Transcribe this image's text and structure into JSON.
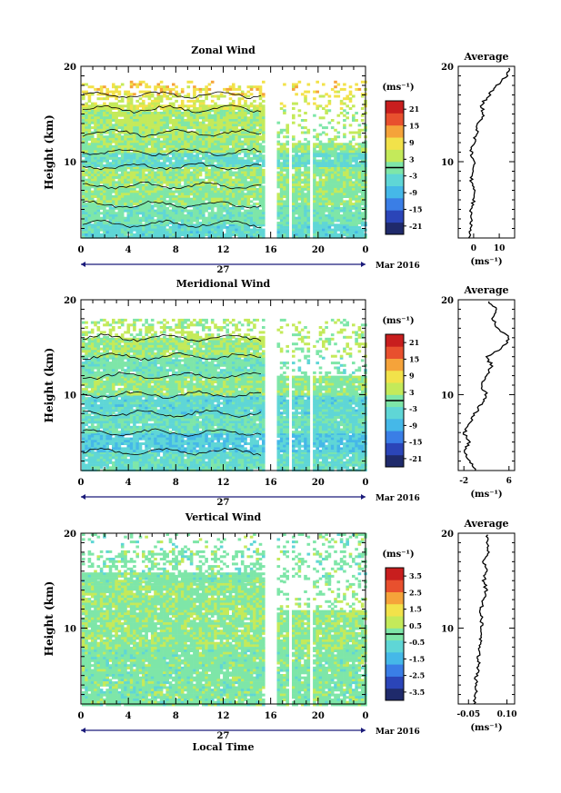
{
  "chart_data": [
    {
      "type": "heatmap",
      "title": "Zonal Wind",
      "ylabel": "Height (km)",
      "ylim": [
        2,
        20
      ],
      "yticks": [
        "10",
        "20"
      ],
      "xticks": [
        "0",
        "4",
        "8",
        "12",
        "16",
        "20",
        "0"
      ],
      "day_label": "27",
      "month_label": "Mar 2016",
      "colorbar_unit": "(ms⁻¹)",
      "colorbar_ticks": [
        "21",
        "15",
        "9",
        "3",
        "-3",
        "-9",
        "-15",
        "-21"
      ],
      "colorbar_range": [
        -24,
        24
      ],
      "bands": [
        {
          "y_range": [
            2.0,
            3.5
          ],
          "value": -4
        },
        {
          "y_range": [
            3.5,
            5.5
          ],
          "value": -1
        },
        {
          "y_range": [
            5.5,
            7.5
          ],
          "value": 1
        },
        {
          "y_range": [
            7.5,
            9.5
          ],
          "value": 2
        },
        {
          "y_range": [
            9.5,
            11.0
          ],
          "value": -3
        },
        {
          "y_range": [
            11.0,
            13.0
          ],
          "value": 2
        },
        {
          "y_range": [
            13.0,
            15.5
          ],
          "value": 3
        },
        {
          "y_range": [
            15.5,
            17.0
          ],
          "value": 6
        },
        {
          "y_range": [
            17.0,
            18.5
          ],
          "value": 9
        }
      ],
      "data_gaps": [
        [
          15.5,
          16.3
        ],
        [
          17.3,
          17.7
        ],
        [
          19.1,
          19.5
        ]
      ],
      "average_profile": {
        "title": "Average",
        "xlabel": "(ms⁻¹)",
        "xticks": [
          "0",
          "10"
        ],
        "xlim": [
          -6,
          16
        ],
        "yticks": [
          "10",
          "20"
        ],
        "height": [
          2,
          3,
          4,
          5,
          6,
          7,
          8,
          9,
          10,
          11,
          12,
          13,
          14,
          15,
          16,
          17,
          18,
          19,
          20
        ],
        "value": [
          -2,
          -1,
          -1,
          -1,
          0,
          0,
          -1,
          0,
          0,
          -1,
          0,
          1,
          2,
          4,
          3,
          6,
          9,
          13,
          14
        ]
      }
    },
    {
      "type": "heatmap",
      "title": "Meridional Wind",
      "ylabel": "Height (km)",
      "ylim": [
        2,
        20
      ],
      "yticks": [
        "10",
        "20"
      ],
      "xticks": [
        "0",
        "4",
        "8",
        "12",
        "16",
        "20",
        "0"
      ],
      "day_label": "27",
      "month_label": "Mar 2016",
      "colorbar_unit": "(ms⁻¹)",
      "colorbar_ticks": [
        "21",
        "15",
        "9",
        "3",
        "-3",
        "-9",
        "-15",
        "-21"
      ],
      "colorbar_range": [
        -24,
        24
      ],
      "bands": [
        {
          "y_range": [
            2.0,
            4.0
          ],
          "value": -3
        },
        {
          "y_range": [
            4.0,
            6.0
          ],
          "value": -6
        },
        {
          "y_range": [
            6.0,
            8.0
          ],
          "value": -2
        },
        {
          "y_range": [
            8.0,
            10.0
          ],
          "value": -4
        },
        {
          "y_range": [
            10.0,
            12.0
          ],
          "value": 1
        },
        {
          "y_range": [
            12.0,
            14.0
          ],
          "value": -1
        },
        {
          "y_range": [
            14.0,
            16.0
          ],
          "value": 2
        },
        {
          "y_range": [
            16.0,
            18.0
          ],
          "value": 3
        }
      ],
      "data_gaps": [
        [
          15.5,
          16.3
        ],
        [
          17.3,
          17.7
        ],
        [
          19.1,
          19.5
        ]
      ],
      "average_profile": {
        "title": "Average",
        "xlabel": "(ms⁻¹)",
        "xticks": [
          "-2",
          "6"
        ],
        "xlim": [
          -3,
          7
        ],
        "yticks": [
          "10",
          "20"
        ],
        "height": [
          2,
          3,
          4,
          5,
          6,
          7,
          8,
          9,
          10,
          11,
          12,
          13,
          14,
          15,
          16,
          17,
          18,
          19,
          20
        ],
        "value": [
          0,
          -1,
          -2,
          -1,
          -2,
          -1,
          0,
          1,
          2,
          1,
          2,
          3,
          2,
          5,
          6,
          4,
          3,
          4,
          2
        ]
      }
    },
    {
      "type": "heatmap",
      "title": "Vertical Wind",
      "ylabel": "Height (km)",
      "xlabel": "Local Time",
      "ylim": [
        2,
        20
      ],
      "yticks": [
        "10",
        "20"
      ],
      "xticks": [
        "0",
        "4",
        "8",
        "12",
        "16",
        "20",
        "0"
      ],
      "day_label": "27",
      "month_label": "Mar 2016",
      "colorbar_unit": "(ms⁻¹)",
      "colorbar_ticks": [
        "3.5",
        "2.5",
        "1.5",
        "0.5",
        "-0.5",
        "-1.5",
        "-2.5",
        "-3.5"
      ],
      "colorbar_range": [
        -4,
        4
      ],
      "bands": [
        {
          "y_range": [
            2.0,
            8.0
          ],
          "value": 0.0
        },
        {
          "y_range": [
            8.0,
            15.0
          ],
          "value": 0.2
        },
        {
          "y_range": [
            15.0,
            20.0
          ],
          "value": 0.0
        }
      ],
      "data_gaps": [
        [
          15.5,
          16.3
        ],
        [
          17.3,
          17.7
        ],
        [
          19.1,
          19.5
        ]
      ],
      "average_profile": {
        "title": "Average",
        "xlabel": "(ms⁻¹)",
        "xticks": [
          "-0.05",
          "0.10"
        ],
        "xlim": [
          -0.09,
          0.13
        ],
        "yticks": [
          "10",
          "20"
        ],
        "height": [
          2,
          3,
          4,
          5,
          6,
          7,
          8,
          9,
          10,
          11,
          12,
          13,
          14,
          15,
          16,
          17,
          18,
          19,
          20
        ],
        "value": [
          -0.03,
          -0.02,
          -0.02,
          -0.02,
          -0.01,
          -0.01,
          -0.01,
          0.0,
          0.0,
          0.0,
          0.0,
          0.01,
          0.02,
          0.01,
          0.02,
          0.01,
          0.03,
          0.02,
          0.02
        ]
      }
    }
  ],
  "colors": {
    "colorbar": [
      "#1f2a6b",
      "#2b45b8",
      "#3a7ee6",
      "#45b8e8",
      "#5fd6d6",
      "#7ee6a8",
      "#c4ea5a",
      "#f2e24a",
      "#f5a33a",
      "#e8502e",
      "#c81e1e"
    ]
  }
}
